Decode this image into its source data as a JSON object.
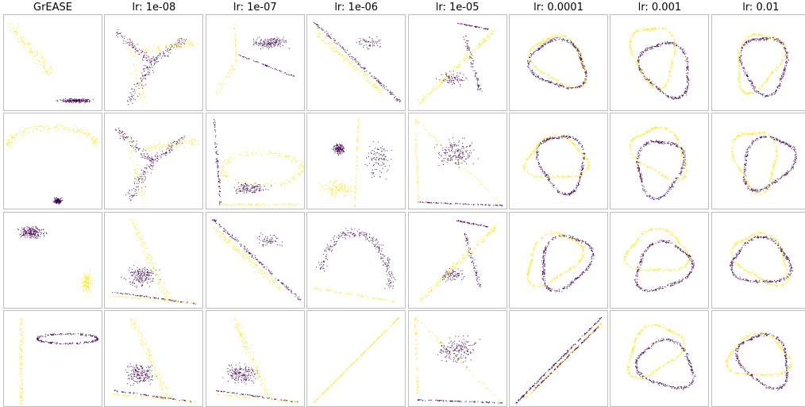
{
  "chart_data": {
    "type": "scatter",
    "column_titles": [
      "GrEASE",
      "lr: 1e-08",
      "lr: 1e-07",
      "lr: 1e-06",
      "lr: 1e-05",
      "lr: 0.0001",
      "lr: 0.001",
      "lr: 0.01"
    ],
    "rows": 4,
    "columns": 8,
    "axes_ticks": false,
    "colors": {
      "class_0": "#440154",
      "class_1": "#fde725",
      "frame": "#bdbdbd"
    },
    "panels": [
      [
        {
          "title": "GrEASE",
          "row": 0,
          "shape": "separate_clusters",
          "desc": "yellow diagonal band upper-left, purple flat cluster lower-right"
        },
        {
          "title": "lr: 1e-08",
          "row": 0,
          "shape": "branches",
          "desc": "purple and yellow radial branches from center"
        },
        {
          "title": "lr: 1e-07",
          "row": 0,
          "shape": "lines_and_blob",
          "desc": "purple blob top-right with purple diagonal line, yellow line to top-left"
        },
        {
          "title": "lr: 1e-06",
          "row": 0,
          "shape": "diagonal_lines",
          "desc": "purple and yellow lines from top-left to bottom-right"
        },
        {
          "title": "lr: 1e-05",
          "row": 0,
          "shape": "v_shape",
          "desc": "yellow diagonal band and purple lines forming a V"
        },
        {
          "title": "lr: 0.0001",
          "row": 0,
          "shape": "two_rings",
          "desc": "yellow and purple overlapping loops"
        },
        {
          "title": "lr: 0.001",
          "row": 0,
          "shape": "two_rings",
          "desc": "yellow and purple overlapping loops"
        },
        {
          "title": "lr: 0.01",
          "row": 0,
          "shape": "two_rings",
          "desc": "yellow and purple overlapping loops"
        }
      ],
      [
        {
          "title": "GrEASE",
          "row": 1,
          "shape": "separate_clusters",
          "desc": "yellow arc at top, small purple cluster at bottom"
        },
        {
          "title": "lr: 1e-08",
          "row": 1,
          "shape": "branches",
          "desc": "yellow diagonal branch and purple lines at bottom"
        },
        {
          "title": "lr: 1e-07",
          "row": 1,
          "shape": "corner",
          "desc": "purple and yellow L-shaped lines with scattered band"
        },
        {
          "title": "lr: 1e-06",
          "row": 1,
          "shape": "vertical_lines",
          "desc": "purple blob and vertical yellow line"
        },
        {
          "title": "lr: 1e-05",
          "row": 1,
          "shape": "triangle",
          "desc": "yellow and purple lines forming a triangle"
        },
        {
          "title": "lr: 0.0001",
          "row": 1,
          "shape": "two_rings",
          "desc": "yellow and purple loop shapes"
        },
        {
          "title": "lr: 0.001",
          "row": 1,
          "shape": "two_rings",
          "desc": "purple diagonal loop crossing yellow loop"
        },
        {
          "title": "lr: 0.01",
          "row": 1,
          "shape": "two_rings",
          "desc": "yellow and purple overlapping loops"
        }
      ],
      [
        {
          "title": "GrEASE",
          "row": 2,
          "shape": "separate_clusters",
          "desc": "purple cluster top-left, yellow cluster bottom-right"
        },
        {
          "title": "lr: 1e-08",
          "row": 2,
          "shape": "fan",
          "desc": "yellow diagonal band, purple scatter, lines at bottom"
        },
        {
          "title": "lr: 1e-07",
          "row": 2,
          "shape": "diagonal_lines",
          "desc": "purple and yellow diagonal bands"
        },
        {
          "title": "lr: 1e-06",
          "row": 2,
          "shape": "arc",
          "desc": "purple arc with yellow lines at bottom"
        },
        {
          "title": "lr: 1e-05",
          "row": 2,
          "shape": "v_shape",
          "desc": "purple band and yellow lines converging"
        },
        {
          "title": "lr: 0.0001",
          "row": 2,
          "shape": "two_rings",
          "desc": "yellow and purple overlapping loops"
        },
        {
          "title": "lr: 0.001",
          "row": 2,
          "shape": "two_rings",
          "desc": "purple and yellow overlapping loops"
        },
        {
          "title": "lr: 0.01",
          "row": 2,
          "shape": "two_rings",
          "desc": "purple and yellow overlapping loops"
        }
      ],
      [
        {
          "title": "GrEASE",
          "row": 3,
          "shape": "separate_clusters",
          "desc": "yellow vertical band left, purple horizontal ellipse right"
        },
        {
          "title": "lr: 1e-08",
          "row": 3,
          "shape": "fan",
          "desc": "purple and yellow lines converging at right"
        },
        {
          "title": "lr: 1e-07",
          "row": 3,
          "shape": "fan",
          "desc": "lines from bottom-left to upper-right with scatter"
        },
        {
          "title": "lr: 1e-06",
          "row": 3,
          "shape": "single_line",
          "desc": "single yellow diagonal line"
        },
        {
          "title": "lr: 1e-05",
          "row": 3,
          "shape": "triangle",
          "desc": "purple top line with yellow scatter triangle"
        },
        {
          "title": "lr: 0.0001",
          "row": 3,
          "shape": "parallel_lines",
          "desc": "purple and yellow parallel diagonal lines"
        },
        {
          "title": "lr: 0.001",
          "row": 3,
          "shape": "two_rings",
          "desc": "purple and yellow overlapping loops"
        },
        {
          "title": "lr: 0.01",
          "row": 3,
          "shape": "two_rings",
          "desc": "yellow and purple overlapping loops"
        }
      ]
    ]
  }
}
